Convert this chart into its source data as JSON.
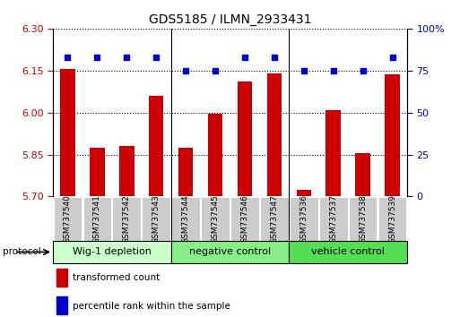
{
  "title": "GDS5185 / ILMN_2933431",
  "samples": [
    "GSM737540",
    "GSM737541",
    "GSM737542",
    "GSM737543",
    "GSM737544",
    "GSM737545",
    "GSM737546",
    "GSM737547",
    "GSM737536",
    "GSM737537",
    "GSM737538",
    "GSM737539"
  ],
  "red_values": [
    6.155,
    5.875,
    5.88,
    6.06,
    5.875,
    5.995,
    6.11,
    6.14,
    5.725,
    6.01,
    5.855,
    6.135
  ],
  "blue_values": [
    83,
    83,
    83,
    83,
    75,
    75,
    83,
    83,
    75,
    75,
    75,
    83
  ],
  "ylim_left": [
    5.7,
    6.3
  ],
  "ylim_right": [
    0,
    100
  ],
  "yticks_left": [
    5.7,
    5.85,
    6.0,
    6.15,
    6.3
  ],
  "yticks_right": [
    0,
    25,
    50,
    75,
    100
  ],
  "groups": [
    {
      "label": "Wig-1 depletion",
      "start": 0,
      "end": 4,
      "color": "#ccffcc"
    },
    {
      "label": "negative control",
      "start": 4,
      "end": 8,
      "color": "#88ee88"
    },
    {
      "label": "vehicle control",
      "start": 8,
      "end": 12,
      "color": "#55dd55"
    }
  ],
  "bar_color": "#cc0000",
  "dot_color": "#0000cc",
  "grid_color": "#000000",
  "background_color": "#ffffff",
  "tick_label_color_left": "#cc0000",
  "tick_label_color_right": "#0000cc",
  "legend_red": "transformed count",
  "legend_blue": "percentile rank within the sample",
  "protocol_label": "protocol",
  "sample_box_color": "#cccccc",
  "title_fontsize": 10,
  "bar_width": 0.5
}
